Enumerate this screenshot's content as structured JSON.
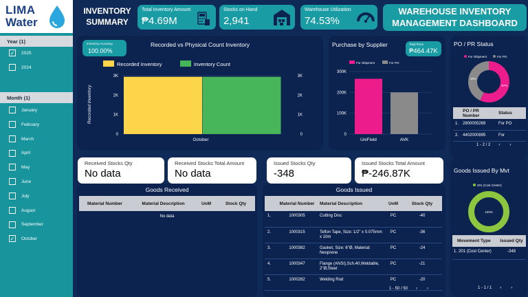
{
  "brand": {
    "line1": "LIMA",
    "line2": "Water"
  },
  "header": {
    "summary_title": "INVENTORY SUMMARY",
    "dashboard_title": "WAREHOUSE INVENTORY MANAGEMENT DASHBOARD"
  },
  "kpis": {
    "total_inventory": {
      "label": "Total Inventory Amount",
      "value": "₱4.69M"
    },
    "stocks_on_hand": {
      "label": "Stocks on Hand",
      "value": "2,941"
    },
    "warehouse_util": {
      "label": "Warehouse Utilization",
      "value": "74.53%"
    },
    "inventory_accuracy": {
      "label": "Inventory Accuracy",
      "value": "100.00%"
    },
    "total_price": {
      "label": "Total Price",
      "value": "₱464.47K"
    }
  },
  "filters": {
    "year": {
      "header": "Year (1)",
      "items": [
        {
          "label": "2025",
          "checked": true
        },
        {
          "label": "2024",
          "checked": false
        }
      ]
    },
    "month": {
      "header": "Month (1)",
      "items": [
        {
          "label": "January",
          "checked": false
        },
        {
          "label": "February",
          "checked": false
        },
        {
          "label": "March",
          "checked": false
        },
        {
          "label": "April",
          "checked": false
        },
        {
          "label": "May",
          "checked": false
        },
        {
          "label": "June",
          "checked": false
        },
        {
          "label": "July",
          "checked": false
        },
        {
          "label": "August",
          "checked": false
        },
        {
          "label": "September",
          "checked": false
        },
        {
          "label": "October",
          "checked": true
        }
      ]
    }
  },
  "chart_data": [
    {
      "type": "bar",
      "title": "Recorded vs Physical Count Inventory",
      "categories": [
        "October"
      ],
      "series": [
        {
          "name": "Recorded Inventory",
          "values": [
            2941
          ],
          "color": "#fdd54a"
        },
        {
          "name": "Inventory Count",
          "values": [
            2941
          ],
          "color": "#47b65a"
        }
      ],
      "ylabel": "Recorded Inventory",
      "ylim": [
        0,
        3000
      ],
      "yticks": [
        "0",
        "1K",
        "2K",
        "3K"
      ],
      "legend": "top",
      "grid": true
    },
    {
      "type": "bar",
      "title": "Purchase by Supplier",
      "categories": [
        "UniField",
        "AVK"
      ],
      "series": [
        {
          "name": "For Shipment",
          "values": [
            265000,
            0
          ],
          "color": "#ec1c8c"
        },
        {
          "name": "For PO",
          "values": [
            0,
            200000
          ],
          "color": "#8a8a8a"
        }
      ],
      "ylim": [
        0,
        300000
      ],
      "yticks": [
        "0",
        "100K",
        "200K",
        "300K"
      ],
      "legend": "top",
      "grid": true
    },
    {
      "type": "pie",
      "title": "PO / PR Status",
      "slices": [
        {
          "name": "For Shipment",
          "value": 57,
          "label": "57%",
          "color": "#ec1c8c"
        },
        {
          "name": "For PO",
          "value": 43,
          "label": "43%",
          "color": "#8a8a8a"
        }
      ]
    },
    {
      "type": "pie",
      "title": "Goods Issued By Mvt",
      "slices": [
        {
          "name": "201 (Cost Center)",
          "value": 100,
          "label": "100%",
          "color": "#8cc63f"
        }
      ]
    }
  ],
  "po_status": {
    "cols": [
      "PO / PR Number",
      "Status"
    ],
    "rows": [
      [
        "1.",
        "2800005269",
        "For PO"
      ],
      [
        "2.",
        "4402000895",
        "For"
      ]
    ],
    "pager": "1 - 2 / 2"
  },
  "received": {
    "qty": {
      "label": "Received Stocks Qty",
      "value": "No data"
    },
    "amount": {
      "label": "Received Stocks Total Amount",
      "value": "No data"
    },
    "title": "Goods Received",
    "cols": [
      "Material Number",
      "Material Description",
      "UoM",
      "Stock Qty"
    ],
    "empty": "No data"
  },
  "issued": {
    "qty": {
      "label": "Issued Stocks Qty",
      "value": "-348"
    },
    "amount": {
      "label": "Issued Stocks Total Amount",
      "value": "₱-246.87K"
    },
    "title": "Goods Issued",
    "cols": [
      "Material Number",
      "Material Description",
      "UoM",
      "Stock Qty"
    ],
    "rows": [
      [
        "1.",
        "1000305",
        "Cutting Disc",
        "PC",
        "-40"
      ],
      [
        "2.",
        "1000315",
        "Teflon Tape, Size: 1/2\" x 0.075mm x 10m",
        "PC",
        "-36"
      ],
      [
        "3.",
        "1000382",
        "Gasket, Size: 6\"Ø, Material: Neoprene",
        "PC",
        "-24"
      ],
      [
        "4.",
        "1000347",
        "Flange (ANSI),Sch.40,Weldable, 2\"Ø,Steel",
        "PC",
        "-21"
      ],
      [
        "5.",
        "1000282",
        "Welding Rod",
        "PC",
        "-20"
      ]
    ],
    "pager": "1 - 50 / 50"
  },
  "mvt": {
    "cols": [
      "Movement Type",
      "Issued Qty"
    ],
    "rows": [
      [
        "1.",
        "201 (Cost Center)",
        "-348"
      ]
    ],
    "pager": "1 - 1 / 1"
  }
}
